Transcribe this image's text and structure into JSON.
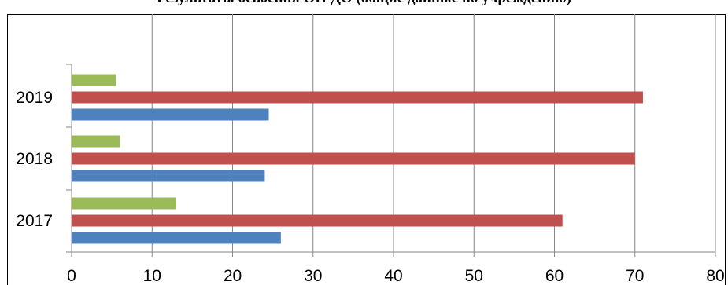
{
  "chart_data": {
    "type": "bar",
    "orientation": "horizontal",
    "title": "Результаты освоения ОП ДО (общие данные по учреждению)",
    "categories": [
      "2017",
      "2018",
      "2019"
    ],
    "series": [
      {
        "values": [
          26,
          24,
          24.5
        ],
        "color": "#4F81BD"
      },
      {
        "values": [
          61,
          70,
          71
        ],
        "color": "#C0504D"
      },
      {
        "values": [
          13,
          6,
          5.5
        ],
        "color": "#9BBB59"
      }
    ],
    "xlim": [
      0,
      80
    ],
    "xticks": [
      "0",
      "10",
      "20",
      "30",
      "40",
      "50",
      "60",
      "70",
      "80"
    ],
    "xlabel": "",
    "ylabel": "",
    "grid": "vertical",
    "legend": "none"
  }
}
